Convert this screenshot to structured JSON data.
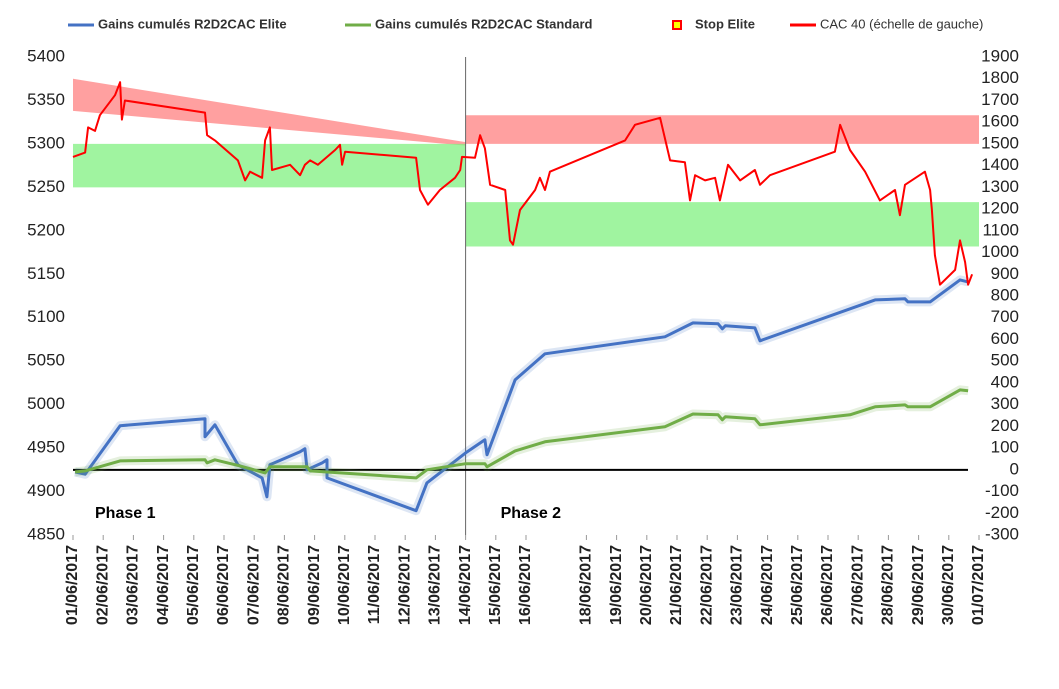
{
  "chart_data": {
    "type": "line",
    "xlim": [
      0,
      30
    ],
    "xticks": [
      {
        "value": 0,
        "label": "01/06/2017"
      },
      {
        "value": 1,
        "label": "02/06/2017"
      },
      {
        "value": 2,
        "label": "03/06/2017"
      },
      {
        "value": 3,
        "label": "04/06/2017"
      },
      {
        "value": 4,
        "label": "05/06/2017"
      },
      {
        "value": 5,
        "label": "06/06/2017"
      },
      {
        "value": 6,
        "label": "07/06/2017"
      },
      {
        "value": 7,
        "label": "08/06/2017"
      },
      {
        "value": 8,
        "label": "09/06/2017"
      },
      {
        "value": 9,
        "label": "10/06/2017"
      },
      {
        "value": 10,
        "label": "11/06/2017"
      },
      {
        "value": 11,
        "label": "12/06/2017"
      },
      {
        "value": 12,
        "label": "13/06/2017"
      },
      {
        "value": 13,
        "label": "14/06/2017"
      },
      {
        "value": 14,
        "label": "15/06/2017"
      },
      {
        "value": 15,
        "label": "16/06/2017"
      },
      {
        "value": 17,
        "label": "18/06/2017"
      },
      {
        "value": 18,
        "label": "19/06/2017"
      },
      {
        "value": 19,
        "label": "20/06/2017"
      },
      {
        "value": 20,
        "label": "21/06/2017"
      },
      {
        "value": 21,
        "label": "22/06/2017"
      },
      {
        "value": 22,
        "label": "23/06/2017"
      },
      {
        "value": 23,
        "label": "24/06/2017"
      },
      {
        "value": 24,
        "label": "25/06/2017"
      },
      {
        "value": 25,
        "label": "26/06/2017"
      },
      {
        "value": 26,
        "label": "27/06/2017"
      },
      {
        "value": 27,
        "label": "28/06/2017"
      },
      {
        "value": 28,
        "label": "29/06/2017"
      },
      {
        "value": 29,
        "label": "30/06/2017"
      },
      {
        "value": 30,
        "label": "01/07/2017"
      }
    ],
    "ylim": [
      4850,
      5400
    ],
    "yticks": [
      4850,
      4900,
      4950,
      5000,
      5050,
      5100,
      5150,
      5200,
      5250,
      5300,
      5350,
      5400
    ],
    "y2lim": [
      -300,
      1900
    ],
    "y2ticks": [
      -300,
      -200,
      -100,
      0,
      100,
      200,
      300,
      400,
      500,
      600,
      700,
      800,
      900,
      1000,
      1100,
      1200,
      1300,
      1400,
      1500,
      1600,
      1700,
      1800,
      1900
    ],
    "bands": [
      {
        "x": [
          0,
          13
        ],
        "upper": [
          5375,
          5302
        ],
        "lower": [
          5338,
          5298
        ],
        "color": "#ff8080"
      },
      {
        "x": [
          0,
          13
        ],
        "upper": [
          5300,
          5300
        ],
        "lower": [
          5250,
          5250
        ],
        "color": "#80f080"
      },
      {
        "x": [
          13,
          30
        ],
        "upper": [
          5333,
          5333
        ],
        "lower": [
          5300,
          5300
        ],
        "color": "#ff8080"
      },
      {
        "x": [
          13,
          30
        ],
        "upper": [
          5233,
          5233
        ],
        "lower": [
          5182,
          5182
        ],
        "color": "#80f080"
      }
    ],
    "divider_x": 13,
    "zero_line": {
      "axis": "y2",
      "value": 0
    },
    "annotations": [
      "Phase 1",
      "Phase 2"
    ],
    "series": [
      {
        "name": "Gains cumulés R2D2CAC Elite",
        "color": "#4472c4",
        "axis": "y2",
        "x": [
          0.07,
          0.4,
          1.56,
          4.37,
          4.37,
          4.7,
          5.46,
          6.26,
          6.42,
          6.52,
          7.52,
          7.68,
          7.75,
          8.25,
          8.41,
          8.41,
          11.36,
          11.72,
          13,
          13.64,
          13.71,
          14.64,
          15.63,
          19.6,
          20.53,
          21.36,
          21.5,
          21.6,
          22.58,
          22.75,
          26.56,
          27.55,
          27.65,
          28.38,
          29.37,
          29.64
        ],
        "values": [
          -10,
          -20,
          203,
          235,
          152,
          207,
          23,
          -37,
          -124,
          23,
          83,
          97,
          0,
          32,
          46,
          -37,
          -188,
          -60,
          78,
          138,
          69,
          414,
          534,
          612,
          676,
          672,
          649,
          663,
          653,
          594,
          782,
          787,
          773,
          773,
          874,
          865
        ]
      },
      {
        "name": "Gains cumulés R2D2CAC Standard",
        "color": "#70ad47",
        "axis": "y2",
        "x": [
          0.07,
          0.4,
          1.56,
          4.37,
          4.44,
          4.7,
          5.53,
          6.36,
          6.52,
          7.75,
          7.85,
          11.36,
          11.72,
          13,
          13.64,
          13.71,
          14.64,
          15.63,
          19.6,
          20.53,
          21.36,
          21.5,
          21.6,
          22.58,
          22.75,
          25.73,
          26.56,
          27.55,
          27.65,
          28.38,
          29.37,
          29.64
        ],
        "values": [
          -10,
          -5,
          41,
          46,
          32,
          46,
          18,
          -14,
          14,
          14,
          -5,
          -37,
          0,
          28,
          28,
          14,
          87,
          129,
          198,
          257,
          253,
          230,
          244,
          235,
          207,
          253,
          290,
          299,
          290,
          290,
          368,
          364
        ]
      },
      {
        "name": "Stop Elite",
        "color": "#ffff00",
        "edge": "#ff0000",
        "marker": "square",
        "axis": "y2",
        "x": [],
        "values": []
      },
      {
        "name": "CAC 40 (échelle de gauche)",
        "color": "#ff0000",
        "x": [
          0,
          0.4,
          0.5,
          0.73,
          0.89,
          1.39,
          1.56,
          1.62,
          1.72,
          4.37,
          4.44,
          4.7,
          5.46,
          5.7,
          5.86,
          6.26,
          6.36,
          6.52,
          6.59,
          7.19,
          7.52,
          7.68,
          7.85,
          8.11,
          8.68,
          8.84,
          8.91,
          9.01,
          11.36,
          11.49,
          11.75,
          12.15,
          12.65,
          12.82,
          12.88,
          13.31,
          13.48,
          13.64,
          13.81,
          14.31,
          14.47,
          14.57,
          14.8,
          15.3,
          15.46,
          15.63,
          15.79,
          18.28,
          18.61,
          19.44,
          19.77,
          20.26,
          20.43,
          20.6,
          20.93,
          21.26,
          21.42,
          21.69,
          22.09,
          22.58,
          22.75,
          23.08,
          25.23,
          25.4,
          25.73,
          26.23,
          26.72,
          27.22,
          27.38,
          27.55,
          28.21,
          28.38,
          28.44,
          28.54,
          28.71,
          29.21,
          29.37,
          29.54,
          29.64,
          29.77
        ],
        "values": [
          5285,
          5290,
          5319,
          5315,
          5333,
          5356,
          5371,
          5328,
          5350,
          5336,
          5310,
          5304,
          5281,
          5258,
          5268,
          5261,
          5304,
          5319,
          5270,
          5276,
          5264,
          5276,
          5281,
          5276,
          5293,
          5299,
          5276,
          5291,
          5284,
          5247,
          5230,
          5247,
          5261,
          5270,
          5285,
          5284,
          5310,
          5295,
          5253,
          5247,
          5189,
          5184,
          5224,
          5247,
          5261,
          5247,
          5268,
          5304,
          5322,
          5330,
          5281,
          5279,
          5235,
          5264,
          5258,
          5261,
          5235,
          5276,
          5258,
          5270,
          5253,
          5264,
          5291,
          5322,
          5293,
          5268,
          5235,
          5247,
          5218,
          5253,
          5268,
          5247,
          5224,
          5172,
          5138,
          5155,
          5189,
          5164,
          5138,
          5150
        ]
      }
    ]
  }
}
